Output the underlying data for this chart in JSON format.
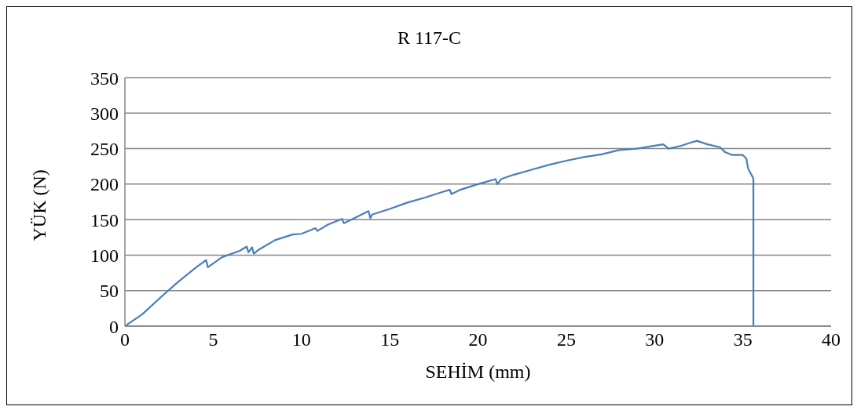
{
  "chart_data": {
    "type": "line",
    "title": "R 117-C",
    "xlabel": "SEHİM (mm)",
    "ylabel": "YÜK (N)",
    "x": [
      0,
      1,
      2,
      3,
      4,
      4.6,
      4.7,
      5.5,
      6.5,
      6.9,
      7.0,
      7.2,
      7.3,
      7.6,
      8.5,
      9.5,
      10.0,
      10.8,
      10.9,
      11.5,
      12.3,
      12.4,
      13,
      13.8,
      13.9,
      14,
      15,
      16,
      17,
      18,
      18.4,
      18.5,
      19,
      20,
      21,
      21.1,
      21.3,
      22,
      23,
      24,
      25,
      26,
      26.5,
      27,
      28,
      29,
      30,
      30.5,
      30.8,
      31.5,
      32,
      32.4,
      33,
      33.7,
      34,
      34.4,
      35,
      35.2,
      35.3,
      35.6,
      35.6
    ],
    "series": [
      {
        "color": "#4a7ebb",
        "values": [
          0,
          17,
          40,
          62,
          82,
          93,
          83,
          97,
          106,
          112,
          104,
          111,
          102,
          108,
          121,
          129,
          130,
          138,
          134,
          143,
          151,
          145,
          152,
          162,
          152,
          157,
          165,
          174,
          181,
          189,
          192,
          186,
          192,
          200,
          207,
          200,
          207,
          213,
          220,
          227,
          233,
          238,
          240,
          242,
          248,
          250,
          254,
          256,
          250,
          254,
          258,
          261,
          256,
          252,
          245,
          241,
          241,
          236,
          222,
          208,
          0
        ]
      }
    ],
    "xlim": [
      0,
      40
    ],
    "xticks": [
      0,
      5,
      10,
      15,
      20,
      25,
      30,
      35,
      40
    ],
    "ylim": [
      0,
      350
    ],
    "yticks": [
      0,
      50,
      100,
      150,
      200,
      250,
      300,
      350
    ],
    "grid": "y",
    "legend": false,
    "marker": "none",
    "line_style": "solid"
  }
}
